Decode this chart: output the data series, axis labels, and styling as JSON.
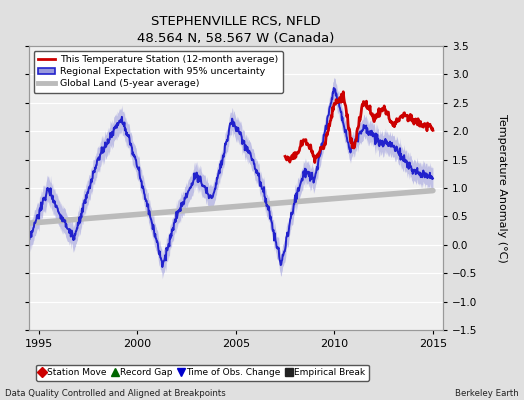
{
  "title": "STEPHENVILLE RCS, NFLD",
  "subtitle": "48.564 N, 58.567 W (Canada)",
  "ylabel": "Temperature Anomaly (°C)",
  "xlabel_left": "Data Quality Controlled and Aligned at Breakpoints",
  "xlabel_right": "Berkeley Earth",
  "ylim": [
    -1.5,
    3.5
  ],
  "xlim": [
    1994.5,
    2015.5
  ],
  "yticks": [
    -1.5,
    -1.0,
    -0.5,
    0.0,
    0.5,
    1.0,
    1.5,
    2.0,
    2.5,
    3.0,
    3.5
  ],
  "xticks": [
    1995,
    2000,
    2005,
    2010,
    2015
  ],
  "background_color": "#e0e0e0",
  "plot_bg_color": "#f0f0f0",
  "reg_color": "#2222cc",
  "reg_band_color": "#9999dd",
  "station_color": "#cc0000",
  "global_color": "#bbbbbb",
  "bottom_legend": [
    {
      "label": "Station Move",
      "marker": "D",
      "color": "#cc0000"
    },
    {
      "label": "Record Gap",
      "marker": "^",
      "color": "#006600"
    },
    {
      "label": "Time of Obs. Change",
      "marker": "v",
      "color": "#0000cc"
    },
    {
      "label": "Empirical Break",
      "marker": "s",
      "color": "#222222"
    }
  ]
}
